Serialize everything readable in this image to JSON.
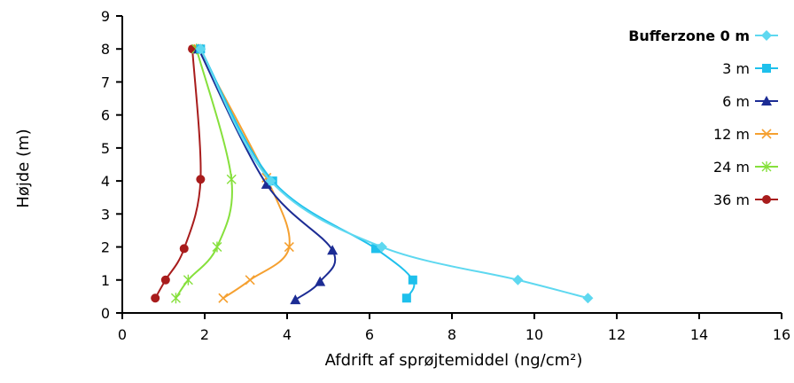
{
  "chart_data": {
    "type": "line",
    "xlabel": "Afdrift af sprøjtemiddel (ng/cm²)",
    "ylabel": "Højde (m)",
    "xlim": [
      0,
      16
    ],
    "ylim": [
      0,
      9
    ],
    "x_ticks": [
      0,
      2,
      4,
      6,
      8,
      10,
      12,
      14,
      16
    ],
    "y_ticks": [
      0,
      1,
      2,
      3,
      4,
      5,
      6,
      7,
      8,
      9
    ],
    "x_tick_labels": [
      "0",
      "2",
      "4",
      "6",
      "8",
      "10",
      "12",
      "14",
      "16"
    ],
    "y_tick_labels": [
      "0",
      "1",
      "2",
      "3",
      "4",
      "5",
      "6",
      "7",
      "8",
      "9"
    ],
    "grid": false,
    "legend_position": "right",
    "series": [
      {
        "name": "Bufferzone 0 m",
        "color": "#5ED8F0",
        "marker": "diamond",
        "points": [
          [
            1.9,
            8
          ],
          [
            3.6,
            4
          ],
          [
            6.3,
            2
          ],
          [
            9.6,
            1
          ],
          [
            11.3,
            0.45
          ]
        ]
      },
      {
        "name": "3 m",
        "color": "#1EC0EC",
        "marker": "square",
        "points": [
          [
            1.9,
            8
          ],
          [
            3.65,
            4
          ],
          [
            6.15,
            1.95
          ],
          [
            7.05,
            1
          ],
          [
            6.9,
            0.45
          ]
        ]
      },
      {
        "name": "6 m",
        "color": "#1C2C94",
        "marker": "triangle",
        "points": [
          [
            1.85,
            8
          ],
          [
            3.5,
            3.9
          ],
          [
            5.1,
            1.9
          ],
          [
            4.8,
            0.95
          ],
          [
            4.2,
            0.4
          ]
        ]
      },
      {
        "name": "12 m",
        "color": "#F5A030",
        "marker": "x",
        "points": [
          [
            1.85,
            8
          ],
          [
            3.5,
            4.1
          ],
          [
            4.05,
            2
          ],
          [
            3.1,
            1
          ],
          [
            2.45,
            0.45
          ]
        ]
      },
      {
        "name": "24 m",
        "color": "#86E03C",
        "marker": "star",
        "points": [
          [
            1.8,
            8
          ],
          [
            2.65,
            4.05
          ],
          [
            2.3,
            2
          ],
          [
            1.6,
            1
          ],
          [
            1.3,
            0.45
          ]
        ]
      },
      {
        "name": "36 m",
        "color": "#A81C1C",
        "marker": "circle",
        "points": [
          [
            1.7,
            8
          ],
          [
            1.9,
            4.05
          ],
          [
            1.5,
            1.95
          ],
          [
            1.05,
            1
          ],
          [
            0.8,
            0.45
          ]
        ]
      }
    ]
  }
}
